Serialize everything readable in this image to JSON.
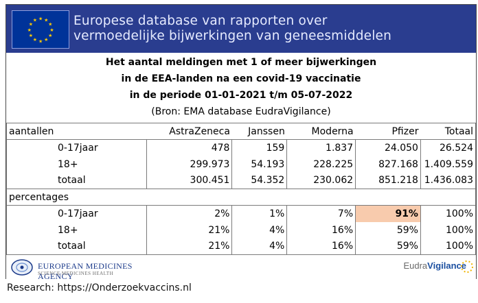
{
  "banner": {
    "line1": "Europese database van rapporten over",
    "line2": "vermoedelijke bijwerkingen van geneesmiddelen",
    "flag_color": "#003399",
    "banner_color": "#2a3d8f"
  },
  "title": {
    "line1": "Het aantal meldingen met 1 of meer  bijwerkingen",
    "line2": "in de EEA-landen na een covid-19 vaccinatie",
    "line3": "in de periode 01-01-2021 t/m 05-07-2022",
    "source": "(Bron: EMA database EudraVigilance)"
  },
  "table": {
    "section_counts": "aantallen",
    "section_percentages": "percentages",
    "columns": [
      "AstraZeneca",
      "Janssen",
      "Moderna",
      "Pfizer",
      "Totaal"
    ],
    "counts": [
      {
        "label": "0-17jaar",
        "values": [
          "478",
          "159",
          "1.837",
          "24.050",
          "26.524"
        ]
      },
      {
        "label": "18+",
        "values": [
          "299.973",
          "54.193",
          "228.225",
          "827.168",
          "1.409.559"
        ]
      },
      {
        "label": "totaal",
        "values": [
          "300.451",
          "54.352",
          "230.062",
          "851.218",
          "1.436.083"
        ]
      }
    ],
    "percentages": [
      {
        "label": "0-17jaar",
        "values": [
          "2%",
          "1%",
          "7%",
          "91%",
          "100%"
        ]
      },
      {
        "label": "18+",
        "values": [
          "21%",
          "4%",
          "16%",
          "59%",
          "100%"
        ]
      },
      {
        "label": "totaal",
        "values": [
          "21%",
          "4%",
          "16%",
          "59%",
          "100%"
        ]
      }
    ],
    "highlight_color": "#f8cbad"
  },
  "footer": {
    "ema_name": "EUROPEAN MEDICINES AGENCY",
    "ema_tagline": "SCIENCE  MEDICINES  HEALTH",
    "ev_part1": "Eudra",
    "ev_part2": "Vigilance"
  },
  "research": "Research: https://Onderzoekvaccins.nl"
}
